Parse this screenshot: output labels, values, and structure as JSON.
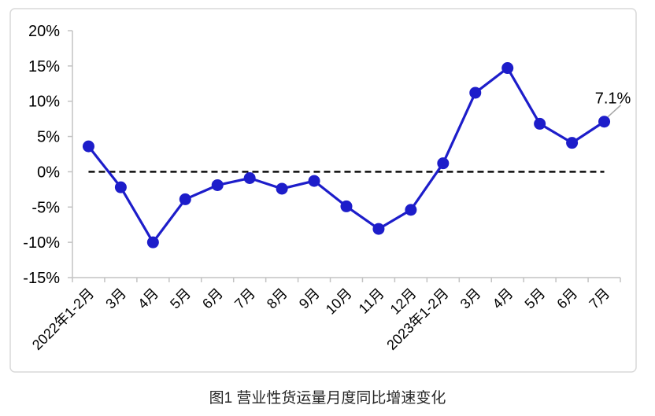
{
  "caption": "图1 营业性货运量月度同比增速变化",
  "chart_data": {
    "type": "line",
    "categories": [
      "2022年1-2月",
      "3月",
      "4月",
      "5月",
      "6月",
      "7月",
      "8月",
      "9月",
      "10月",
      "11月",
      "12月",
      "2023年1-2月",
      "3月",
      "4月",
      "5月",
      "6月",
      "7月"
    ],
    "values": [
      3.6,
      -2.2,
      -10.0,
      -3.9,
      -1.9,
      -0.9,
      -2.4,
      -1.3,
      -4.9,
      -8.1,
      -5.4,
      1.2,
      11.2,
      14.7,
      6.8,
      4.1,
      7.1
    ],
    "y_ticks": [
      "20%",
      "15%",
      "10%",
      "5%",
      "0%",
      "-5%",
      "-10%",
      "-15%"
    ],
    "y_tick_values": [
      20,
      15,
      10,
      5,
      0,
      -5,
      -10,
      -15
    ],
    "ylim": [
      -15,
      20
    ],
    "xlabel": "",
    "ylabel": "",
    "title": "",
    "legend": null,
    "grid": false,
    "zero_line": {
      "value": 0,
      "style": "dashed"
    },
    "annotation": {
      "text": "7.1%",
      "point_index": 16
    },
    "colors": {
      "line": "#1d1dca",
      "marker": "#1d1dca",
      "axis": "#c3c3c3",
      "frame": "#d9d9d9",
      "zero_line": "#000000",
      "tick_label": "#000000",
      "data_label": "#000000",
      "leader": "#a6a6a6",
      "background": "#ffffff"
    }
  }
}
